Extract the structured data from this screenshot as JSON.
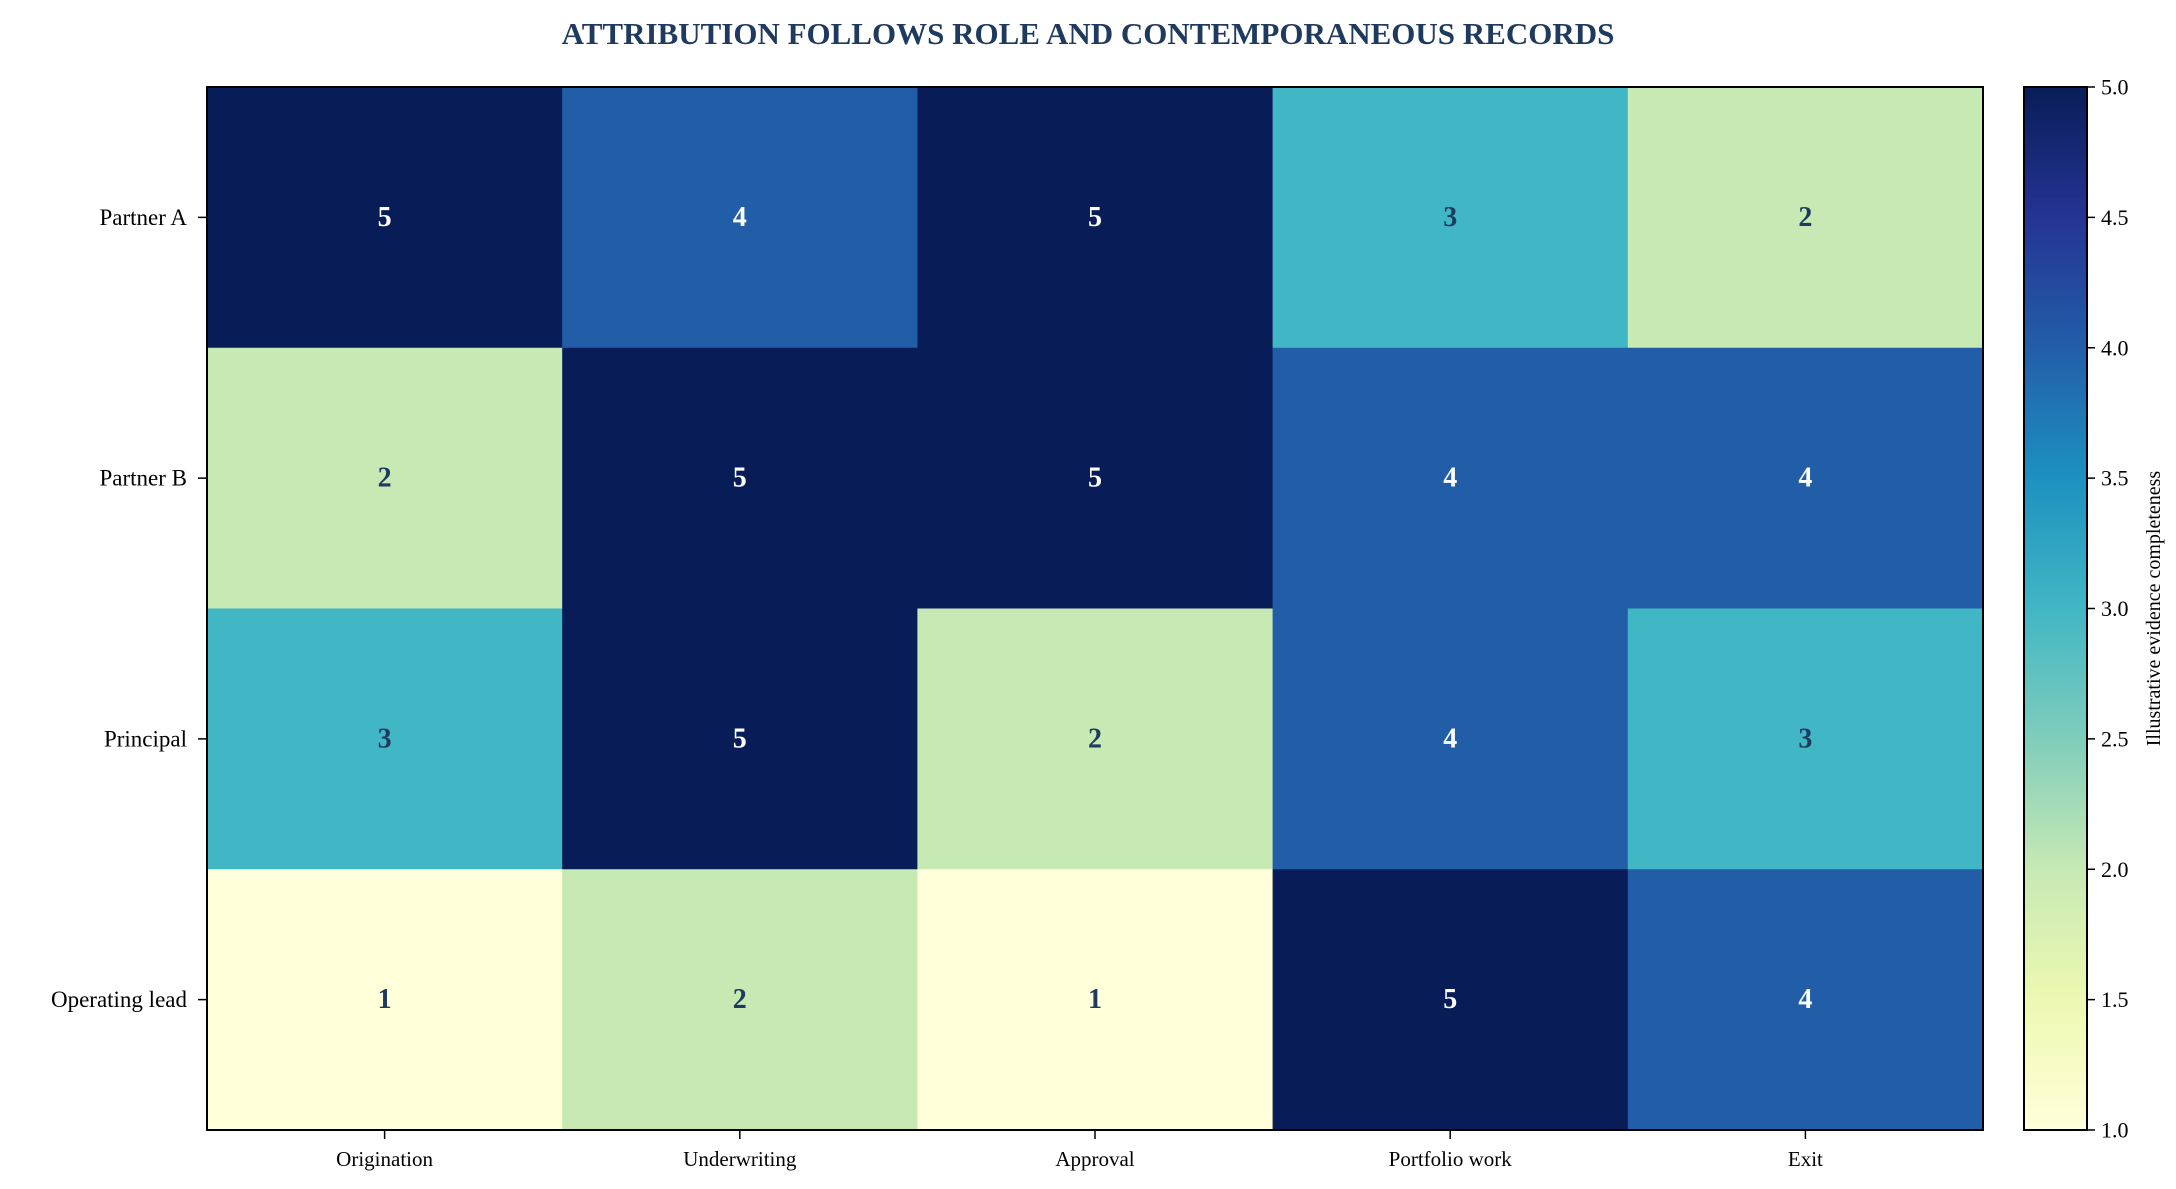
{
  "chart_data": {
    "type": "heatmap",
    "title": "ATTRIBUTION FOLLOWS ROLE AND CONTEMPORANEOUS RECORDS",
    "x_categories": [
      "Origination",
      "Underwriting",
      "Approval",
      "Portfolio work",
      "Exit"
    ],
    "y_categories": [
      "Partner A",
      "Partner B",
      "Principal",
      "Operating lead"
    ],
    "values": [
      [
        5,
        4,
        5,
        3,
        2
      ],
      [
        2,
        5,
        5,
        4,
        4
      ],
      [
        3,
        5,
        2,
        4,
        3
      ],
      [
        1,
        2,
        1,
        5,
        4
      ]
    ],
    "colorbar": {
      "label": "Illustrative evidence completeness",
      "range": [
        1.0,
        5.0
      ],
      "ticks": [
        "1.0",
        "1.5",
        "2.0",
        "2.5",
        "3.0",
        "3.5",
        "4.0",
        "4.5",
        "5.0"
      ],
      "colormap": "YlGnBu"
    },
    "value_colors": {
      "1": "#ffffd9",
      "2": "#c7e9b4",
      "3": "#41b6c4",
      "4": "#225ea8",
      "5": "#081d58"
    },
    "label_colors": {
      "dark_cell_text": "#ffffff",
      "light_cell_text": "#1f3a5f"
    },
    "grid": false,
    "legend": "colorbar-right"
  }
}
